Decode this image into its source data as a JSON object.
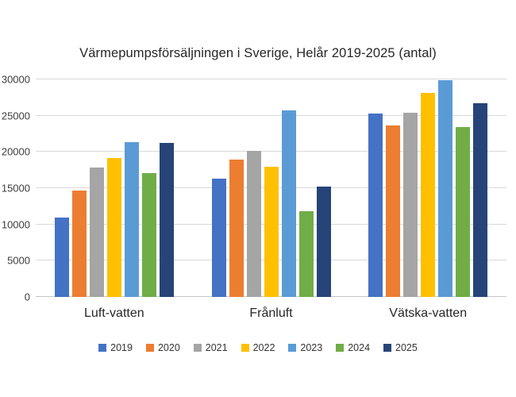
{
  "chart_data": {
    "type": "bar",
    "title": "Värmepumpsförsäljningen i Sverige, Helår 2019-2025 (antal)",
    "categories": [
      "Luft-vatten",
      "Frånluft",
      "Vätska-vatten"
    ],
    "series": [
      {
        "name": "2019",
        "color": "#4472C4",
        "values": [
          11000,
          16300,
          25300
        ]
      },
      {
        "name": "2020",
        "color": "#ED7D31",
        "values": [
          14700,
          18900,
          23700
        ]
      },
      {
        "name": "2021",
        "color": "#A5A5A5",
        "values": [
          17800,
          20100,
          25400
        ]
      },
      {
        "name": "2022",
        "color": "#FFC000",
        "values": [
          19200,
          18000,
          28100
        ]
      },
      {
        "name": "2023",
        "color": "#5B9BD5",
        "values": [
          21300,
          25700,
          29900
        ]
      },
      {
        "name": "2024",
        "color": "#70AD47",
        "values": [
          17100,
          11800,
          23400
        ]
      },
      {
        "name": "2025",
        "color": "#264478",
        "values": [
          21200,
          15200,
          26700
        ]
      }
    ],
    "y_axis": {
      "min": 0,
      "max": 30000,
      "step": 5000,
      "ticks": [
        0,
        5000,
        10000,
        15000,
        20000,
        25000,
        30000
      ]
    },
    "xlabel": "",
    "ylabel": "",
    "grid": true,
    "legend_position": "bottom",
    "background_color": "#FFFFFF",
    "gridline_color": "#D9D9D9",
    "axis_line_color": "#C6C6C6"
  }
}
